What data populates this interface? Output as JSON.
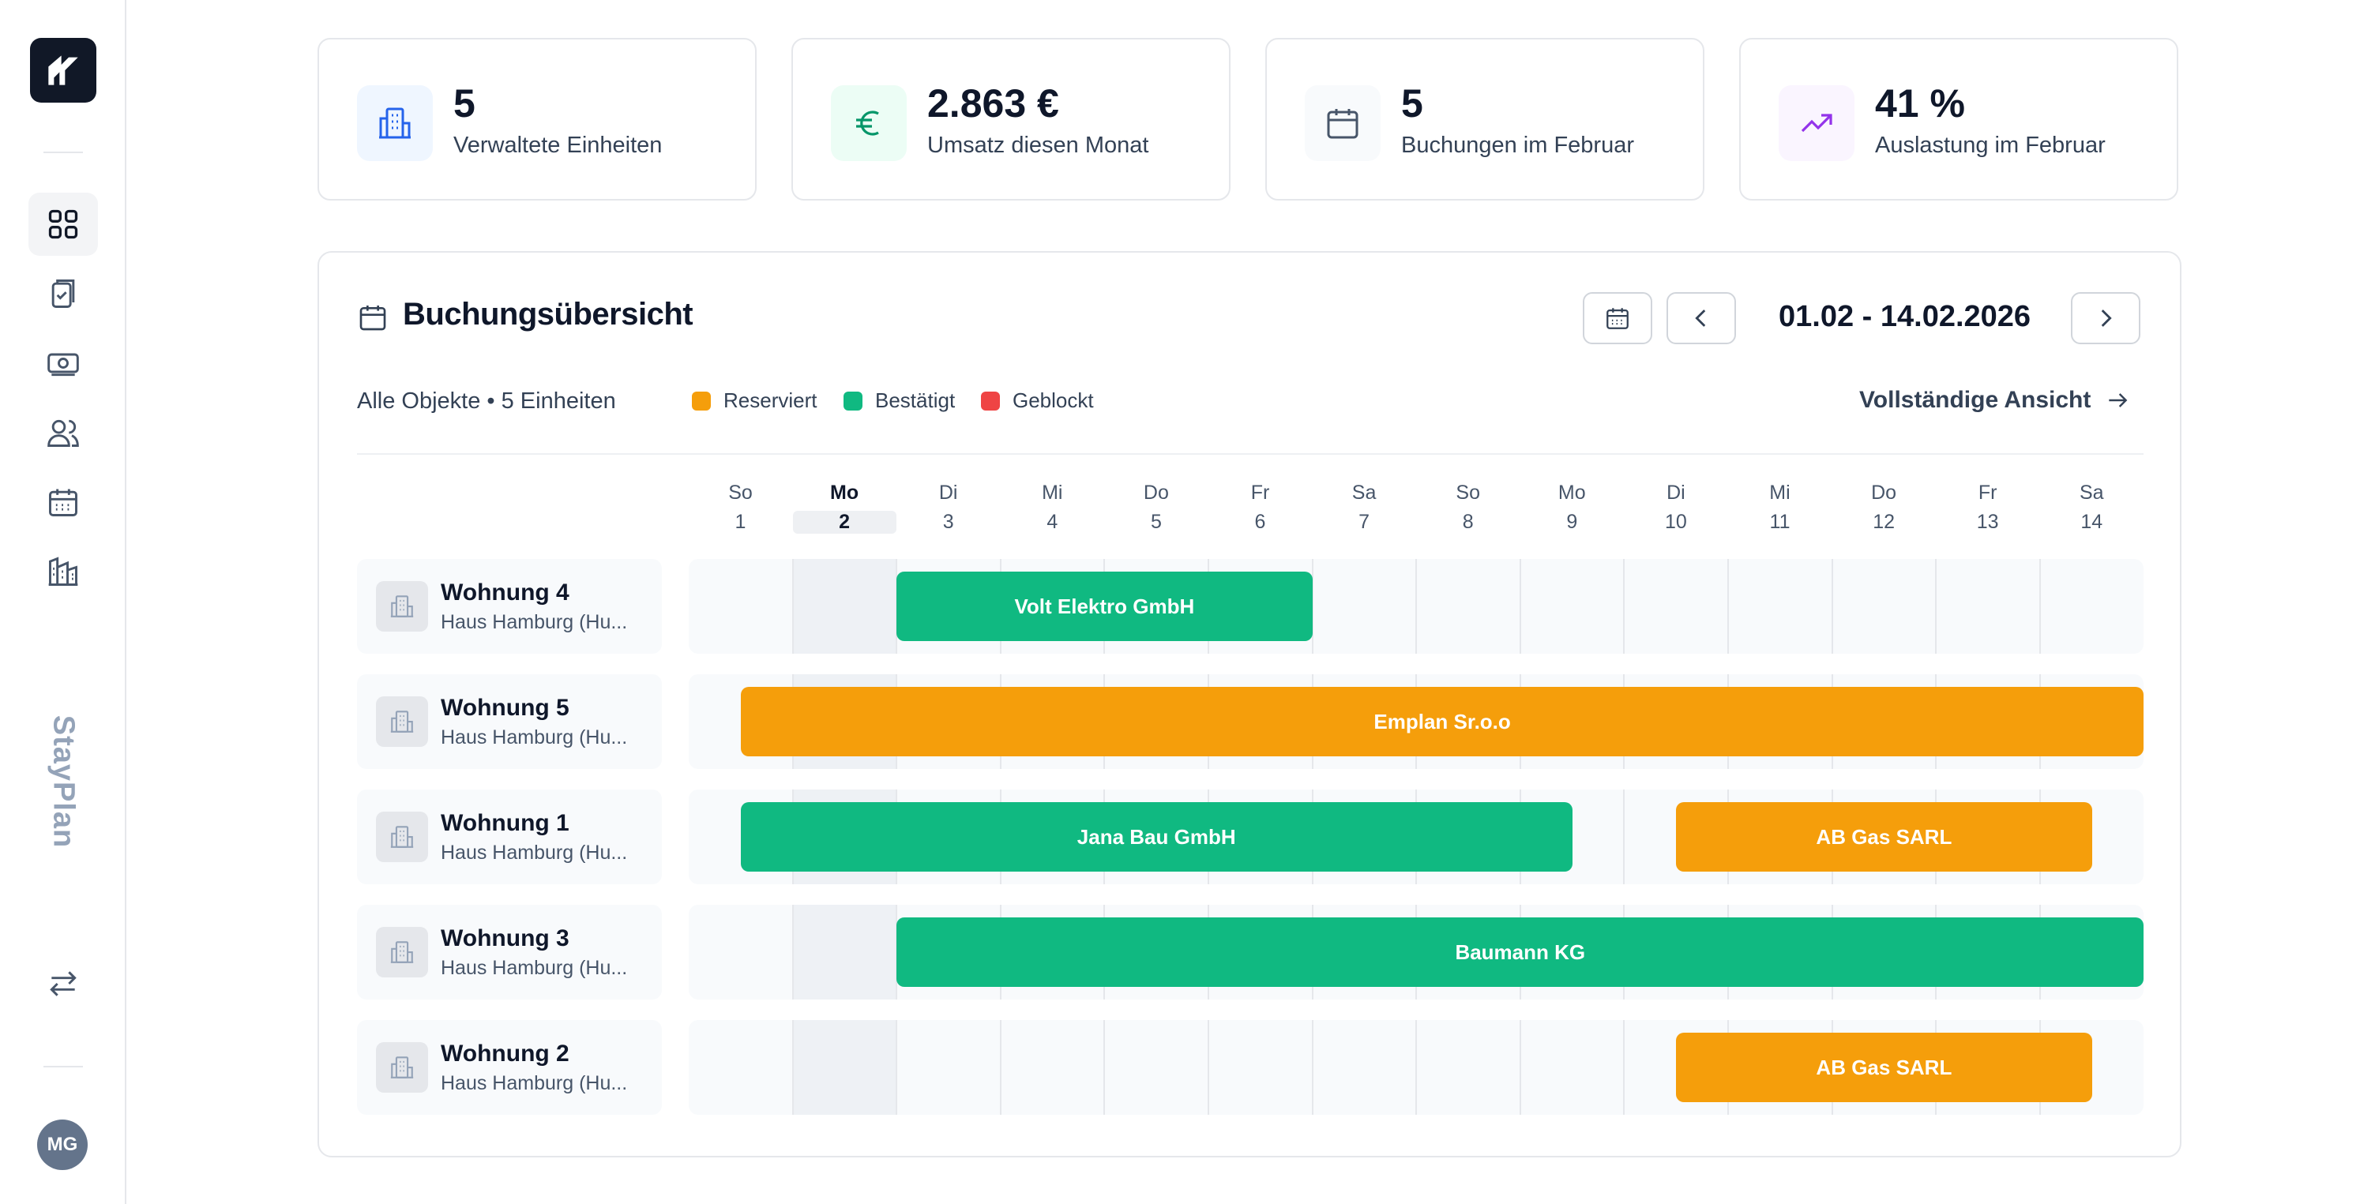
{
  "sidebar": {
    "brand": "StayPlan",
    "user_initials": "MG",
    "items": [
      {
        "name": "dashboard",
        "icon": "grid-icon",
        "active": true
      },
      {
        "name": "tasks",
        "icon": "clipboard-check-icon",
        "active": false
      },
      {
        "name": "payments",
        "icon": "money-icon",
        "active": false
      },
      {
        "name": "guests",
        "icon": "users-icon",
        "active": false
      },
      {
        "name": "calendar",
        "icon": "calendar-icon",
        "active": false
      },
      {
        "name": "properties",
        "icon": "building-icon",
        "active": false
      }
    ]
  },
  "stats": [
    {
      "value": "5",
      "label": "Verwaltete Einheiten",
      "icon": "building-icon",
      "color": "#2563eb",
      "bg": "#eff6ff"
    },
    {
      "value": "2.863 €",
      "label": "Umsatz diesen Monat",
      "icon": "euro-icon",
      "color": "#059669",
      "bg": "#ecfdf5"
    },
    {
      "value": "5",
      "label": "Buchungen im Februar",
      "icon": "calendar-icon",
      "color": "#475569",
      "bg": "#f8fafc"
    },
    {
      "value": "41 %",
      "label": "Auslastung im Februar",
      "icon": "trending-up-icon",
      "color": "#9333ea",
      "bg": "#faf5ff"
    }
  ],
  "panel": {
    "title": "Buchungsübersicht",
    "date_range": "01.02 - 14.02.2026",
    "subhead": "Alle Objekte • 5 Einheiten",
    "full_view": "Vollständige Ansicht",
    "legend": [
      {
        "label": "Reserviert",
        "color": "#f59e0b"
      },
      {
        "label": "Bestätigt",
        "color": "#10b981"
      },
      {
        "label": "Geblockt",
        "color": "#ef4444"
      }
    ]
  },
  "days": [
    {
      "name": "So",
      "num": "1"
    },
    {
      "name": "Mo",
      "num": "2",
      "today": true
    },
    {
      "name": "Di",
      "num": "3"
    },
    {
      "name": "Mi",
      "num": "4"
    },
    {
      "name": "Do",
      "num": "5"
    },
    {
      "name": "Fr",
      "num": "6"
    },
    {
      "name": "Sa",
      "num": "7"
    },
    {
      "name": "So",
      "num": "8"
    },
    {
      "name": "Mo",
      "num": "9"
    },
    {
      "name": "Di",
      "num": "10"
    },
    {
      "name": "Mi",
      "num": "11"
    },
    {
      "name": "Do",
      "num": "12"
    },
    {
      "name": "Fr",
      "num": "13"
    },
    {
      "name": "Sa",
      "num": "14"
    }
  ],
  "units": [
    {
      "name": "Wohnung 4",
      "sub": "Haus Hamburg (Hu...",
      "bookings": [
        {
          "label": "Volt Elektro GmbH",
          "status": "confirmed",
          "start_day": 3.0,
          "end_day": 7.0
        }
      ]
    },
    {
      "name": "Wohnung 5",
      "sub": "Haus Hamburg (Hu...",
      "bookings": [
        {
          "label": "Emplan Sr.o.o",
          "status": "reserved",
          "start_day": 1.5,
          "end_day": 15.0
        }
      ]
    },
    {
      "name": "Wohnung 1",
      "sub": "Haus Hamburg (Hu...",
      "bookings": [
        {
          "label": "Jana Bau GmbH",
          "status": "confirmed",
          "start_day": 1.5,
          "end_day": 9.5
        },
        {
          "label": "AB Gas SARL",
          "status": "reserved",
          "start_day": 10.5,
          "end_day": 14.5
        }
      ]
    },
    {
      "name": "Wohnung 3",
      "sub": "Haus Hamburg (Hu...",
      "bookings": [
        {
          "label": "Baumann KG",
          "status": "confirmed",
          "start_day": 3.0,
          "end_day": 15.0
        }
      ]
    },
    {
      "name": "Wohnung 2",
      "sub": "Haus Hamburg (Hu...",
      "bookings": [
        {
          "label": "AB Gas SARL",
          "status": "reserved",
          "start_day": 10.5,
          "end_day": 14.5
        }
      ]
    }
  ],
  "status_colors": {
    "reserved": "#f59e0b",
    "confirmed": "#10b981",
    "blocked": "#ef4444"
  }
}
